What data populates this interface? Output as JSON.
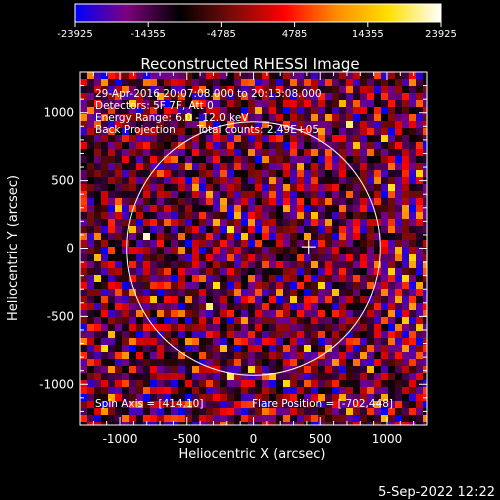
{
  "colorbar": {
    "ticks": [
      "-23925",
      "-14355",
      "-4785",
      "4785",
      "14355",
      "23925"
    ],
    "colors": [
      "#0000ff",
      "#7d007d",
      "#000000",
      "#7a0a0a",
      "#ff0000",
      "#ff8c00",
      "#ffe000",
      "#ffffff"
    ]
  },
  "chart_data": {
    "type": "heatmap",
    "title": "Reconstructed RHESSI Image",
    "xlabel": "Heliocentric X (arcsec)",
    "ylabel": "Heliocentric Y (arcsec)",
    "xlim": [
      -1300,
      1300
    ],
    "ylim": [
      -1300,
      1300
    ],
    "x_ticks": [
      -1000,
      -500,
      0,
      500,
      1000
    ],
    "y_ticks": [
      -1000,
      -500,
      0,
      500,
      1000
    ],
    "x_tick_labels": [
      "-1000",
      "-500",
      "0",
      "500",
      "1000"
    ],
    "y_tick_labels": [
      "-1000",
      "-500",
      "0",
      "500",
      "1000"
    ],
    "value_range": [
      -23925,
      23925
    ],
    "solar_limb_radius_arcsec": 950,
    "cross_marker": [
      414,
      10
    ],
    "annotations": {
      "time_range": "29-Apr-2016 20:07:08.000 to 20:13:08.000",
      "detectors": "Detectors: 5F 7F, Att 0",
      "energy": "Energy Range: 6.0 - 12.0 keV",
      "method": "Back Projection",
      "counts": "Total counts: 2.49E+05",
      "spin_axis": "Spin Axis = [414,10]",
      "flare_position": "Flare Position = [-702,448]"
    },
    "legend": "none",
    "grid": false
  },
  "timestamp": "5-Sep-2022 12:22"
}
